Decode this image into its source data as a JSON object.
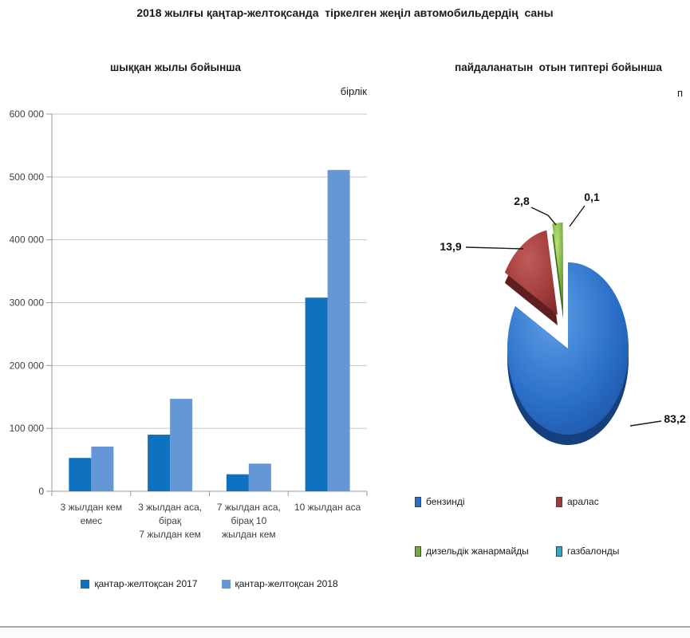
{
  "page": {
    "title": "2018 жылғы қаңтар-желтоқсанда  тіркелген жеңіл автомобильдердің  саны",
    "left_unit": "бірлік",
    "right_unit": "п"
  },
  "chart_data": [
    {
      "type": "bar",
      "title": "шыққан жылы бойынша",
      "ylabel": "бірлік",
      "categories": [
        "3 жылдан кем емес",
        "3 жылдан аса, бірақ 7 жылдан кем",
        "7 жылдан аса, бірақ 10 жылдан кем",
        "10 жылдан аса"
      ],
      "categories_lines": [
        [
          "3 жылдан кем",
          "емес"
        ],
        [
          "3 жылдан аса,",
          "бірақ",
          "7 жылдан кем"
        ],
        [
          "7 жылдан аса,",
          "бірақ 10",
          "жылдан кем"
        ],
        [
          "10 жылдан аса"
        ]
      ],
      "series": [
        {
          "name": "қантар-желтоқсан 2017",
          "color": "#0e72c0",
          "values": [
            53000,
            90000,
            27000,
            308000
          ]
        },
        {
          "name": "қантар-желтоқсан 2018",
          "color": "#6596d6",
          "values": [
            71000,
            147000,
            44000,
            511000
          ]
        }
      ],
      "ylim": [
        0,
        600000
      ],
      "ytick_step": 100000,
      "ytick_labels": [
        "0",
        "100 000",
        "200 000",
        "300 000",
        "400 000",
        "500 000",
        "600 000"
      ],
      "grid": true,
      "legend_position": "bottom"
    },
    {
      "type": "pie",
      "title": "пайдаланатын  отын типтері бойынша",
      "labels": [
        "бензинді",
        "аралас",
        "дизельдік жанармайды",
        "газбалонды"
      ],
      "values": [
        83.2,
        13.9,
        2.8,
        0.1
      ],
      "data_labels": [
        "83,2",
        "13,9",
        "2,8",
        "0,1"
      ],
      "colors": [
        "#2a6fc8",
        "#a03b39",
        "#76ab40",
        "#35a8c8"
      ],
      "legend_position": "bottom"
    }
  ]
}
